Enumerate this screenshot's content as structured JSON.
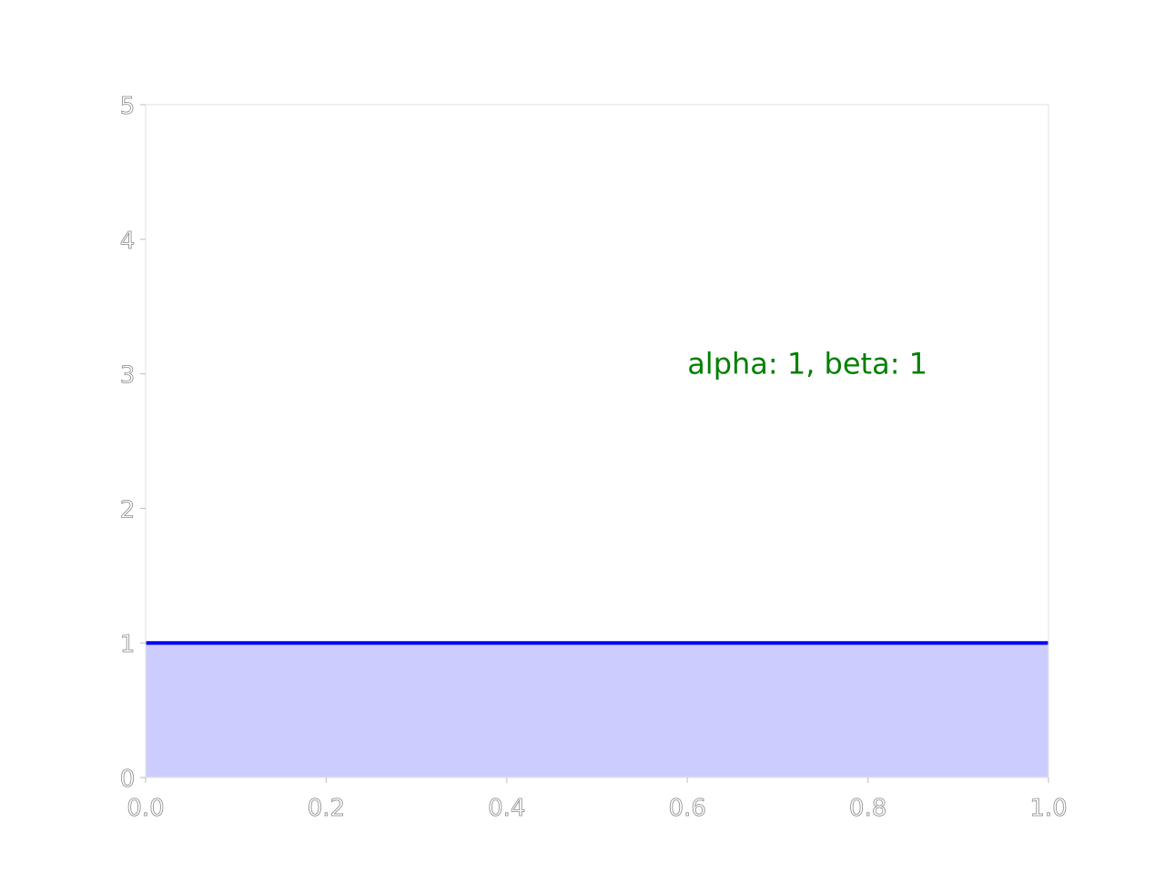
{
  "chart_data": {
    "type": "area",
    "title": "",
    "xlabel": "",
    "ylabel": "",
    "xlim": [
      0.0,
      1.0
    ],
    "ylim": [
      0,
      5
    ],
    "x_ticks": [
      "0.0",
      "0.2",
      "0.4",
      "0.6",
      "0.8",
      "1.0"
    ],
    "y_ticks": [
      "0",
      "1",
      "2",
      "3",
      "4",
      "5"
    ],
    "grid": false,
    "series": [
      {
        "x": [
          0.0,
          1.0
        ],
        "y": [
          1,
          1
        ],
        "line_color": "#0000ff",
        "fill_color": "#ccccff"
      }
    ],
    "annotation": {
      "text": "alpha: 1, beta: 1",
      "x": 0.6,
      "y": 3,
      "color": "#008000"
    }
  }
}
